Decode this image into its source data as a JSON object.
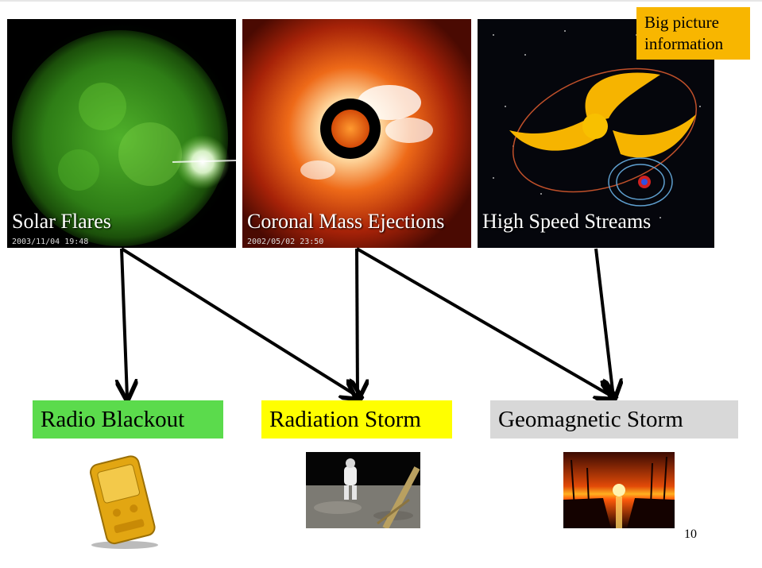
{
  "slide": {
    "note": "Big picture information",
    "page_number": "10"
  },
  "sources": [
    {
      "id": "flares",
      "label": "Solar Flares",
      "timestamp": "2003/11/04 19:48",
      "image": "green-sun-image"
    },
    {
      "id": "cme",
      "label": "Coronal Mass Ejections",
      "timestamp": "2002/05/02 23:50",
      "image": "coronagraph-image"
    },
    {
      "id": "hss",
      "label": "High Speed Streams",
      "timestamp": "",
      "image": "solar-wind-illustration"
    }
  ],
  "effects": [
    {
      "id": "radio",
      "label": "Radio Blackout",
      "color": "#5bdb4c",
      "image": "gps-device-photo"
    },
    {
      "id": "radiation",
      "label": "Radiation Storm",
      "color": "#ffff00",
      "image": "astronaut-on-moon-photo"
    },
    {
      "id": "geo",
      "label": "Geomagnetic Storm",
      "color": "#d8d8d8",
      "image": "power-lines-sunset-photo"
    }
  ],
  "links": [
    {
      "from": "Solar Flares",
      "to": "Radio Blackout"
    },
    {
      "from": "Solar Flares",
      "to": "Radiation Storm"
    },
    {
      "from": "Coronal Mass Ejections",
      "to": "Radiation Storm"
    },
    {
      "from": "Coronal Mass Ejections",
      "to": "Geomagnetic Storm"
    },
    {
      "from": "High Speed Streams",
      "to": "Geomagnetic Storm"
    }
  ]
}
